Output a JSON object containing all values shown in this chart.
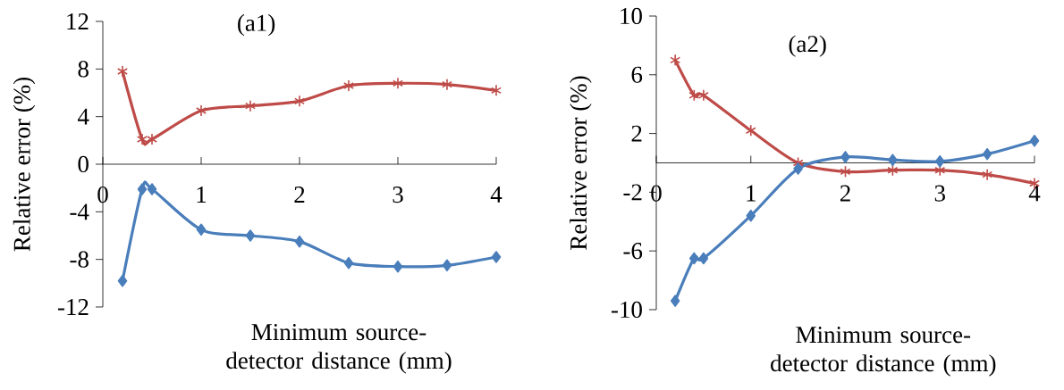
{
  "chart_data": [
    {
      "type": "line",
      "title": "(a1)",
      "xlabel": "Minimum source-detector distance (mm)",
      "ylabel": "Relative error (%)",
      "x": [
        0.2,
        0.4,
        0.5,
        1,
        1.5,
        2,
        2.5,
        3,
        3.5,
        4
      ],
      "series": [
        {
          "color": "#be4b48",
          "marker": "cross",
          "values": [
            7.8,
            2.1,
            2.1,
            4.5,
            4.9,
            5.3,
            6.6,
            6.8,
            6.7,
            6.2
          ]
        },
        {
          "color": "#4a7ebb",
          "marker": "diamond",
          "values": [
            -9.8,
            -2.1,
            -2.1,
            -5.5,
            -6.0,
            -6.5,
            -8.3,
            -8.6,
            -8.5,
            -7.8
          ]
        }
      ],
      "xlim": [
        0,
        4
      ],
      "xticks": [
        0,
        1,
        2,
        3,
        4
      ],
      "ylim": [
        -12,
        12
      ],
      "yticks": [
        -12,
        -8,
        -4,
        0,
        4,
        8,
        12
      ],
      "grid": false
    },
    {
      "type": "line",
      "title": "(a2)",
      "xlabel": "Minimum source-detector distance (mm)",
      "ylabel": "Relative error (%)",
      "x": [
        0.2,
        0.4,
        0.5,
        1,
        1.5,
        2,
        2.5,
        3,
        3.5,
        4
      ],
      "series": [
        {
          "color": "#be4b48",
          "marker": "cross",
          "values": [
            7.0,
            4.6,
            4.6,
            2.2,
            0.0,
            -0.6,
            -0.5,
            -0.5,
            -0.8,
            -1.4
          ]
        },
        {
          "color": "#4a7ebb",
          "marker": "diamond",
          "values": [
            -9.4,
            -6.5,
            -6.5,
            -3.6,
            -0.4,
            0.4,
            0.2,
            0.1,
            0.6,
            1.5
          ]
        }
      ],
      "xlim": [
        0,
        4
      ],
      "xticks": [
        0,
        1,
        2,
        3,
        4
      ],
      "ylim": [
        -10,
        10
      ],
      "yticks": [
        -10,
        -6,
        -2,
        2,
        6,
        10
      ],
      "grid": false
    }
  ]
}
